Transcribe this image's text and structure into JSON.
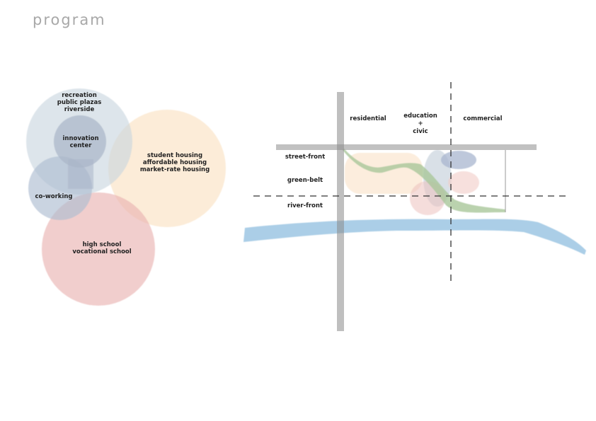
{
  "title": "program",
  "bubbles": {
    "recreation": [
      "recreation",
      "public plazas",
      "riverside"
    ],
    "innovation": [
      "innovation",
      "center"
    ],
    "student": [
      "student housing",
      "affordable housing",
      "market-rate housing"
    ],
    "coworking": [
      "co-working"
    ],
    "school": [
      "high school",
      "vocational school"
    ]
  },
  "zones": {
    "residential": "residential",
    "education": [
      "education",
      "+",
      "civic"
    ],
    "commercial": "commercial"
  },
  "bands": {
    "street": "street-front",
    "green": "green-belt",
    "river": "river-front"
  },
  "colors": {
    "blue_grey": "#b9c6d3",
    "peach": "#fbe3c6",
    "pink": "#e6a3a1",
    "green": "#a9c79a",
    "river": "#9cc5e3"
  }
}
